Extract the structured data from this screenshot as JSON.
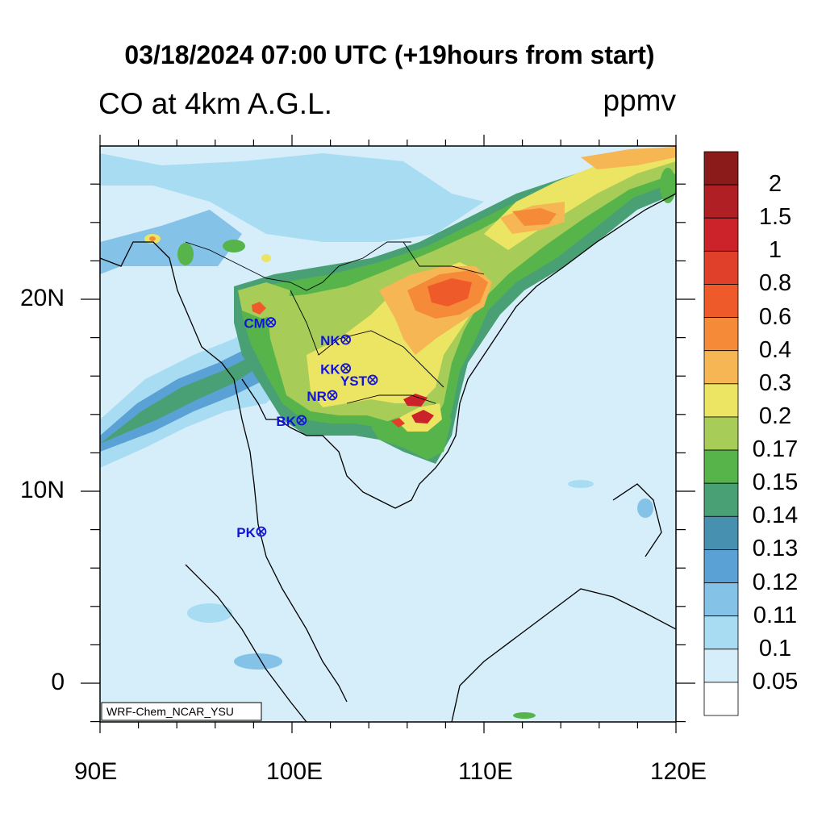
{
  "title": "03/18/2024 07:00 UTC (+19hours from start)",
  "subtitle_left": "CO at 4km A.G.L.",
  "units": "ppmv",
  "credit": "WRF-Chem_NCAR_YSU",
  "axes": {
    "lon_labels": [
      "90E",
      "100E",
      "110E",
      "120E"
    ],
    "lat_labels": [
      "20N",
      "10N",
      "0"
    ]
  },
  "colorbar": {
    "levels": [
      "2",
      "1.5",
      "1",
      "0.8",
      "0.6",
      "0.4",
      "0.3",
      "0.2",
      "0.17",
      "0.15",
      "0.14",
      "0.13",
      "0.12",
      "0.11",
      "0.1",
      "0.05"
    ],
    "colors": [
      "#8b1a1a",
      "#b01f24",
      "#cc2229",
      "#e0402a",
      "#ef5a2a",
      "#f58b39",
      "#f6b653",
      "#ece463",
      "#a7cd58",
      "#56b44b",
      "#49a074",
      "#4890b0",
      "#5aa2d5",
      "#84c2e8",
      "#a8dcf2",
      "#d5eefa",
      "#ffffff"
    ]
  },
  "stations": [
    {
      "name": "CM",
      "lon": 98.9,
      "lat": 18.8
    },
    {
      "name": "NK",
      "lon": 102.8,
      "lat": 17.9
    },
    {
      "name": "KK",
      "lon": 102.8,
      "lat": 16.4
    },
    {
      "name": "YST",
      "lon": 104.2,
      "lat": 15.8
    },
    {
      "name": "NR",
      "lon": 102.1,
      "lat": 15.0
    },
    {
      "name": "BK",
      "lon": 100.5,
      "lat": 13.7
    },
    {
      "name": "PK",
      "lon": 98.4,
      "lat": 7.9
    }
  ]
}
